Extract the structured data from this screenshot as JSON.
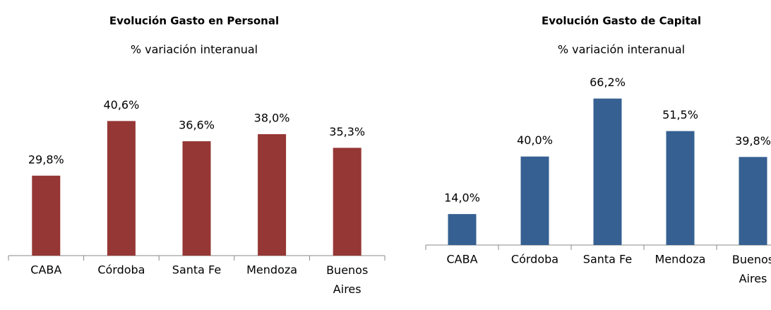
{
  "chart_data": [
    {
      "type": "bar",
      "title": "Evolución Gasto en Personal",
      "subtitle": "% variación interanual",
      "categories": [
        "CABA",
        "Córdoba",
        "Santa Fe",
        "Mendoza",
        "Buenos Aires"
      ],
      "values": [
        29.8,
        40.6,
        36.6,
        38.0,
        35.3
      ],
      "value_labels": [
        "29,8%",
        "40,6%",
        "36,6%",
        "38,0%",
        "35,3%"
      ],
      "color": "#953735",
      "ylim": [
        14,
        50
      ]
    },
    {
      "type": "bar",
      "title": "Evolución Gasto de Capital",
      "subtitle": "% variación interanual",
      "categories": [
        "CABA",
        "Córdoba",
        "Santa Fe",
        "Mendoza",
        "Buenos Aires"
      ],
      "values": [
        14.0,
        40.0,
        66.2,
        51.5,
        39.8
      ],
      "value_labels": [
        "14,0%",
        "40,0%",
        "66,2%",
        "51,5%",
        "39,8%"
      ],
      "color": "#366092",
      "ylim": [
        0,
        75
      ]
    }
  ]
}
